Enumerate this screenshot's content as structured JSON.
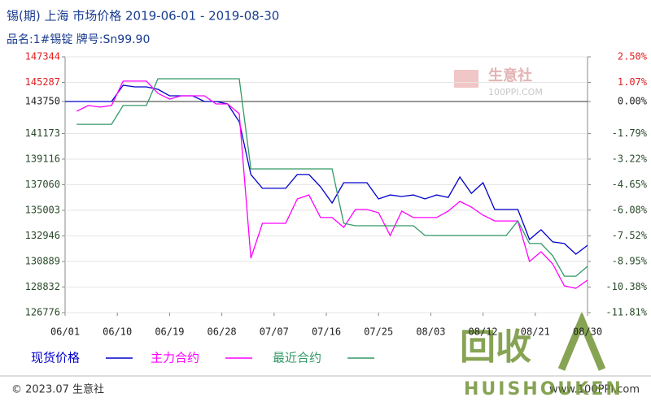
{
  "chart_data": {
    "type": "line",
    "title": "锡(期) 上海  市场价格  2019-06-01 - 2019-08-30",
    "subtitle": "品名:1#锡锭  牌号:Sn99.90",
    "watermark": "生意社",
    "watermark_url": "100PPI.COM",
    "footer_left": "© 2023.07 生意社",
    "footer_right": "www.100PPI.com",
    "overlay_logo": "回收",
    "overlay_logo_sub": "HUISHOUKEN",
    "x": [
      "06/01",
      "06/03",
      "06/05",
      "06/07",
      "06/09",
      "06/11",
      "06/13",
      "06/15",
      "06/17",
      "06/19",
      "06/21",
      "06/23",
      "06/25",
      "06/27",
      "06/29",
      "07/01",
      "07/03",
      "07/05",
      "07/07",
      "07/09",
      "07/11",
      "07/13",
      "07/15",
      "07/17",
      "07/19",
      "07/21",
      "07/23",
      "07/25",
      "07/27",
      "07/29",
      "07/31",
      "08/02",
      "08/04",
      "08/06",
      "08/08",
      "08/10",
      "08/12",
      "08/14",
      "08/16",
      "08/18",
      "08/20",
      "08/22",
      "08/24",
      "08/26",
      "08/28",
      "08/30"
    ],
    "xlim": [
      "06/01",
      "08/30"
    ],
    "xticks": [
      "06/01",
      "06/10",
      "06/19",
      "06/28",
      "07/07",
      "07/16",
      "07/25",
      "08/03",
      "08/12",
      "08/21",
      "08/30"
    ],
    "ylim": [
      126776,
      147344
    ],
    "yticks": [
      147344,
      145287,
      143750,
      141173,
      139116,
      137060,
      135003,
      132946,
      130889,
      128832,
      126776
    ],
    "y2lim": [
      -11.81,
      2.5
    ],
    "y2ticks": [
      {
        "value": 2.5,
        "label": "2.50%"
      },
      {
        "value": 1.07,
        "label": "1.07%"
      },
      {
        "value": 0,
        "label": "0.00%"
      },
      {
        "value": -1.79,
        "label": "-1.79%"
      },
      {
        "value": -3.22,
        "label": "-3.22%"
      },
      {
        "value": -4.65,
        "label": "-4.65%"
      },
      {
        "value": -6.08,
        "label": "-6.08%"
      },
      {
        "value": -7.52,
        "label": "-7.52%"
      },
      {
        "value": -8.95,
        "label": "-8.95%"
      },
      {
        "value": -10.38,
        "label": "-10.38%"
      },
      {
        "value": -11.81,
        "label": "-11.81%"
      }
    ],
    "baseline": 143750,
    "grid": true,
    "series": [
      {
        "name": "现货价格",
        "color": "#0000cc",
        "values": [
          143750,
          143750,
          143750,
          143750,
          143750,
          145060,
          144930,
          144930,
          144730,
          144210,
          144210,
          144210,
          143750,
          143750,
          143560,
          142120,
          137880,
          136770,
          136770,
          136770,
          137880,
          137880,
          136900,
          135590,
          137220,
          137220,
          137220,
          135920,
          136240,
          136110,
          136240,
          135920,
          136240,
          136040,
          137680,
          136370,
          137220,
          135070,
          135070,
          135070,
          132650,
          133440,
          132460,
          132330,
          131480,
          132190
        ]
      },
      {
        "name": "主力合约",
        "color": "#ff00ff",
        "values": [
          null,
          142970,
          143430,
          143300,
          143430,
          145390,
          145390,
          145390,
          144410,
          143950,
          144210,
          144210,
          144210,
          143560,
          143560,
          142770,
          131150,
          133960,
          133960,
          133960,
          135920,
          136240,
          134420,
          134420,
          133630,
          135070,
          135070,
          134810,
          132980,
          134940,
          134420,
          134420,
          134420,
          134940,
          135720,
          135260,
          134610,
          134150,
          134150,
          134150,
          130890,
          131670,
          130690,
          128930,
          128730,
          129390
        ]
      },
      {
        "name": "最近合约",
        "color": "#339966",
        "values": [
          null,
          141920,
          141920,
          141920,
          141920,
          143430,
          143430,
          143430,
          145580,
          145580,
          145580,
          145580,
          145580,
          145580,
          145580,
          145580,
          138330,
          138330,
          138330,
          138330,
          138330,
          138330,
          138330,
          138330,
          133960,
          133760,
          133760,
          133760,
          133760,
          133760,
          133760,
          132980,
          132980,
          132980,
          132980,
          132980,
          132980,
          132980,
          132980,
          134150,
          132330,
          132330,
          131350,
          129710,
          129710,
          130500
        ]
      }
    ]
  }
}
